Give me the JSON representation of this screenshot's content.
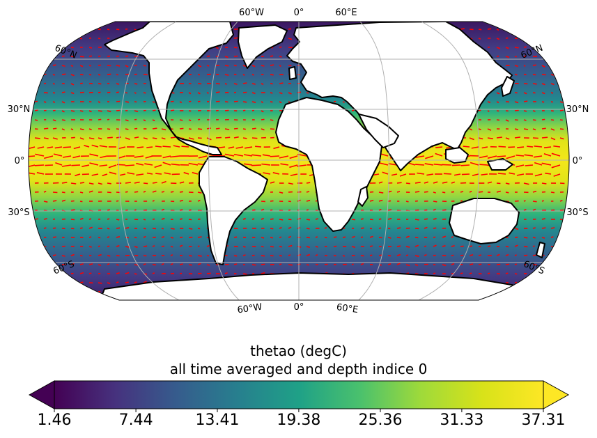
{
  "map": {
    "projection": "robinson",
    "variable": "thetao",
    "units": "degC",
    "graticule_color": "#b0b0b0",
    "land_color": "#ffffff",
    "coast_color": "#000000",
    "vector_color": "#ff0000",
    "labels": {
      "top": [
        "60°W",
        "0°",
        "60°E"
      ],
      "bottom": [
        "60°W",
        "0°",
        "60°E"
      ],
      "left": [
        "60°N",
        "30°N",
        "0°",
        "30°S",
        "60°S"
      ],
      "right": [
        "60°N",
        "30°N",
        "0°",
        "30°S",
        "60°S"
      ]
    }
  },
  "colorbar": {
    "title_line1": "thetao (degC)",
    "title_line2": "all time averaged and depth indice 0",
    "colormap": "viridis",
    "extend": "both",
    "range": [
      1.46,
      37.31
    ],
    "ticks": [
      "1.46",
      "7.44",
      "13.41",
      "19.38",
      "25.36",
      "31.33",
      "37.31"
    ]
  }
}
